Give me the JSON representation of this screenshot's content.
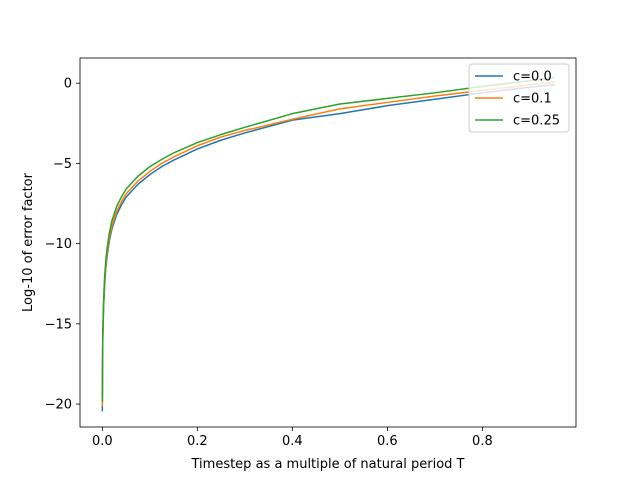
{
  "chart_data": {
    "type": "line",
    "title": "",
    "xlabel": "Timestep as a multiple of natural period T",
    "ylabel": "Log-10 of error factor",
    "xlim": [
      -0.047,
      0.997
    ],
    "ylim": [
      -21.43,
      1.57
    ],
    "x_ticks": [
      0.0,
      0.2,
      0.4,
      0.6,
      0.8
    ],
    "x_tick_labels": [
      "0.0",
      "0.2",
      "0.4",
      "0.6",
      "0.8"
    ],
    "y_ticks": [
      0,
      -5,
      -10,
      -15,
      -20
    ],
    "y_tick_labels": [
      "0",
      "−5",
      "−10",
      "−15",
      "−20"
    ],
    "grid": false,
    "legend_position": "top-right",
    "series": [
      {
        "name": "c=0.0",
        "color": "#1f77b4",
        "x": [
          0.0,
          0.0005,
          0.001,
          0.002,
          0.003,
          0.005,
          0.0075,
          0.01,
          0.015,
          0.02,
          0.03,
          0.04,
          0.05,
          0.075,
          0.1,
          0.125,
          0.15,
          0.2,
          0.25,
          0.3,
          0.4,
          0.5,
          0.6,
          0.7,
          0.8,
          0.9,
          0.95
        ],
        "y": [
          -20.4,
          -17.6,
          -16.0,
          -14.7,
          -13.8,
          -12.5,
          -11.5,
          -10.8,
          -9.8,
          -9.1,
          -8.2,
          -7.6,
          -7.1,
          -6.3,
          -5.7,
          -5.2,
          -4.8,
          -4.1,
          -3.55,
          -3.1,
          -2.3,
          -1.9,
          -1.4,
          -1.0,
          -0.6,
          -0.25,
          -0.1
        ]
      },
      {
        "name": "c=0.1",
        "color": "#ff7f0e",
        "x": [
          0.0,
          0.0005,
          0.001,
          0.002,
          0.003,
          0.005,
          0.0075,
          0.01,
          0.015,
          0.02,
          0.03,
          0.04,
          0.05,
          0.075,
          0.1,
          0.125,
          0.15,
          0.2,
          0.25,
          0.3,
          0.4,
          0.5,
          0.6,
          0.7,
          0.8,
          0.9,
          0.95
        ],
        "y": [
          -20.1,
          -17.4,
          -15.8,
          -14.5,
          -13.6,
          -12.3,
          -11.3,
          -10.6,
          -9.6,
          -8.9,
          -8.0,
          -7.4,
          -6.9,
          -6.1,
          -5.5,
          -5.0,
          -4.6,
          -3.9,
          -3.35,
          -2.95,
          -2.25,
          -1.6,
          -1.2,
          -0.8,
          -0.45,
          -0.1,
          0.05
        ]
      },
      {
        "name": "c=0.25",
        "color": "#2ca02c",
        "x": [
          0.0,
          0.0005,
          0.001,
          0.002,
          0.003,
          0.005,
          0.0075,
          0.01,
          0.015,
          0.02,
          0.03,
          0.04,
          0.05,
          0.075,
          0.1,
          0.125,
          0.15,
          0.2,
          0.25,
          0.3,
          0.4,
          0.5,
          0.6,
          0.7,
          0.8,
          0.9,
          0.95
        ],
        "y": [
          -19.8,
          -17.1,
          -15.5,
          -14.2,
          -13.3,
          -12.0,
          -11.0,
          -10.3,
          -9.3,
          -8.6,
          -7.7,
          -7.1,
          -6.6,
          -5.8,
          -5.2,
          -4.75,
          -4.35,
          -3.7,
          -3.2,
          -2.75,
          -1.9,
          -1.3,
          -0.95,
          -0.6,
          -0.2,
          0.15,
          0.35
        ]
      }
    ]
  }
}
